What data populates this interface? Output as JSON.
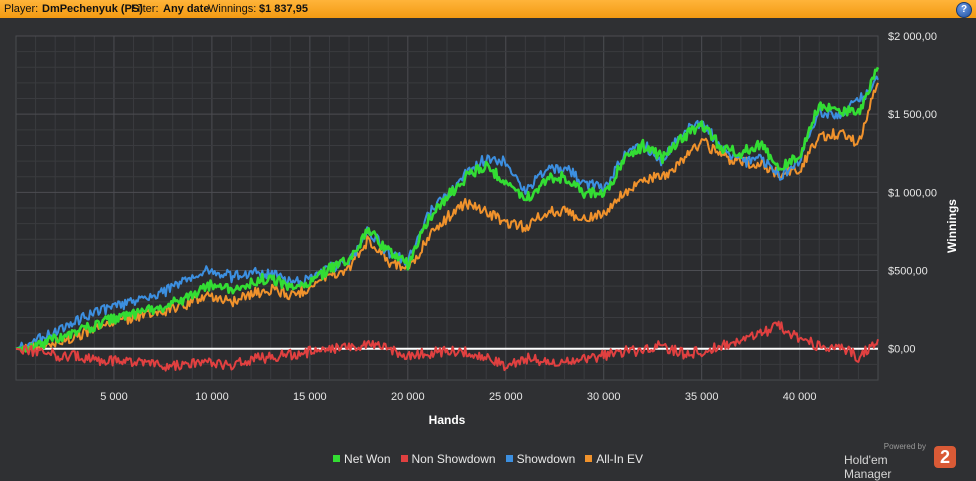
{
  "header": {
    "player_label": "Player:",
    "player_value": "DmPechenyuk (PS)",
    "filter_label": "Filter:",
    "filter_value": "Any date",
    "winnings_label": "Winnings:",
    "winnings_value": "$1 837,95",
    "help_icon": "?"
  },
  "chart_data": {
    "type": "line",
    "xlabel": "Hands",
    "ylabel": "Winnings",
    "xlim": [
      0,
      44000
    ],
    "ylim": [
      -200,
      2000
    ],
    "x_ticks": [
      5000,
      10000,
      15000,
      20000,
      25000,
      30000,
      35000,
      40000
    ],
    "x_tick_labels": [
      "5 000",
      "10 000",
      "15 000",
      "20 000",
      "25 000",
      "30 000",
      "35 000",
      "40 000"
    ],
    "y_ticks": [
      0,
      500,
      1000,
      1500,
      2000
    ],
    "y_tick_labels": [
      "$0,00",
      "$500,00",
      "$1 000,00",
      "$1 500,00",
      "$2 000,00"
    ],
    "grid": true,
    "legend_position": "bottom",
    "x": [
      0,
      1000,
      2000,
      3000,
      4000,
      5000,
      6000,
      7000,
      8000,
      9000,
      10000,
      11000,
      12000,
      13000,
      14000,
      15000,
      16000,
      17000,
      18000,
      19000,
      20000,
      21000,
      22000,
      23000,
      24000,
      25000,
      26000,
      27000,
      28000,
      29000,
      30000,
      31000,
      32000,
      33000,
      34000,
      35000,
      36000,
      37000,
      38000,
      39000,
      40000,
      41000,
      42000,
      43000,
      44000
    ],
    "series": [
      {
        "name": "Net Won",
        "color": "#33dd33",
        "values": [
          0,
          20,
          60,
          100,
          150,
          190,
          220,
          250,
          290,
          340,
          410,
          370,
          420,
          460,
          380,
          420,
          510,
          560,
          760,
          620,
          540,
          820,
          970,
          1100,
          1170,
          1070,
          950,
          1080,
          1100,
          1000,
          980,
          1200,
          1300,
          1220,
          1350,
          1430,
          1290,
          1250,
          1310,
          1150,
          1230,
          1570,
          1520,
          1510,
          1800
        ]
      },
      {
        "name": "Non Showdown",
        "color": "#e04040",
        "values": [
          0,
          -20,
          -40,
          -50,
          -70,
          -80,
          -90,
          -100,
          -110,
          -100,
          -90,
          -100,
          -70,
          -50,
          -40,
          -20,
          -10,
          10,
          20,
          0,
          -40,
          -30,
          -10,
          -20,
          -50,
          -120,
          -60,
          -80,
          -90,
          -70,
          -40,
          -20,
          -10,
          20,
          -30,
          -20,
          20,
          60,
          100,
          150,
          60,
          20,
          10,
          -50,
          60
        ]
      },
      {
        "name": "Showdown",
        "color": "#3c8fe0",
        "values": [
          0,
          50,
          100,
          170,
          230,
          270,
          300,
          330,
          390,
          450,
          510,
          460,
          490,
          480,
          420,
          440,
          520,
          550,
          760,
          610,
          560,
          860,
          980,
          1120,
          1220,
          1200,
          1010,
          1140,
          1160,
          1060,
          1020,
          1220,
          1310,
          1200,
          1380,
          1450,
          1290,
          1190,
          1210,
          1110,
          1200,
          1520,
          1500,
          1580,
          1720
        ]
      },
      {
        "name": "All-In EV",
        "color": "#f0922c",
        "values": [
          0,
          10,
          40,
          80,
          120,
          170,
          200,
          220,
          250,
          300,
          340,
          300,
          350,
          380,
          340,
          390,
          470,
          520,
          700,
          560,
          500,
          700,
          840,
          930,
          880,
          800,
          780,
          870,
          880,
          820,
          860,
          1000,
          1080,
          1100,
          1200,
          1330,
          1230,
          1190,
          1190,
          1110,
          1150,
          1350,
          1380,
          1320,
          1700
        ]
      }
    ]
  },
  "brand": {
    "powered_by": "Powered by",
    "name": "Hold'em Manager",
    "logo_glyph": "2"
  }
}
